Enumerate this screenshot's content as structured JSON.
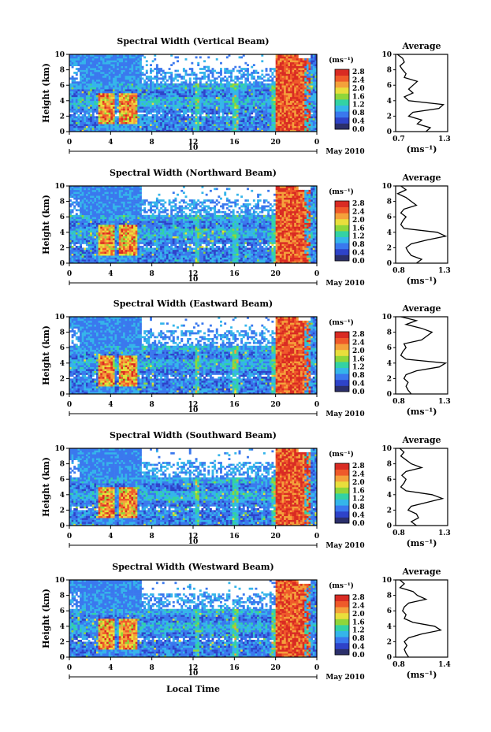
{
  "colorbar": {
    "unit": "(ms⁻¹)",
    "ticks": [
      "2.8",
      "2.4",
      "2.0",
      "1.6",
      "1.2",
      "0.8",
      "0.4",
      "0.0"
    ],
    "colors": [
      "#2b2f6b",
      "#2e43c9",
      "#3a78ee",
      "#35b5ea",
      "#33d2a4",
      "#8fd63a",
      "#e9de3c",
      "#f4a13b",
      "#ef5a2a",
      "#d92b23"
    ]
  },
  "shared": {
    "ylabel": "Height (km)",
    "yticks": [
      "0",
      "2",
      "4",
      "6",
      "8",
      "10"
    ],
    "xticks": [
      "0",
      "4",
      "8",
      "12",
      "16",
      "20",
      "0"
    ],
    "day_label": "10",
    "month_label": "May 2010",
    "avg_title": "Average",
    "avg_unit": "(ms⁻¹)",
    "xlabel_bottom": "Local Time"
  },
  "chart_data": [
    {
      "type": "heatmap",
      "title": "Spectral Width (Vertical Beam)",
      "ylabel": "Height (km)",
      "ylim": [
        0,
        10
      ],
      "xlim": [
        0,
        24
      ],
      "avg_xticks": [
        "0.7",
        "1.3"
      ],
      "avg_xlim": [
        0.7,
        1.3
      ],
      "avg_profile": [
        1.05,
        1.1,
        0.95,
        1.0,
        0.85,
        0.9,
        1.2,
        1.25,
        0.85,
        0.8,
        0.9,
        0.85,
        0.9,
        0.95,
        0.8,
        0.82,
        0.78,
        0.75,
        0.8,
        0.78,
        0.72
      ]
    },
    {
      "type": "heatmap",
      "title": "Spectral Width (Northward Beam)",
      "ylabel": "Height (km)",
      "ylim": [
        0,
        10
      ],
      "xlim": [
        0,
        24
      ],
      "avg_xticks": [
        "0.8",
        "1.3"
      ],
      "avg_xlim": [
        0.8,
        1.3
      ],
      "avg_profile": [
        1.0,
        1.05,
        0.95,
        0.92,
        0.9,
        0.95,
        1.1,
        1.28,
        1.2,
        0.88,
        0.85,
        0.87,
        0.9,
        0.85,
        0.88,
        1.0,
        0.95,
        0.9,
        0.82,
        0.9,
        0.85
      ]
    },
    {
      "type": "heatmap",
      "title": "Spectral Width (Eastward Beam)",
      "ylabel": "Height (km)",
      "ylim": [
        0,
        10
      ],
      "xlim": [
        0,
        24
      ],
      "avg_xticks": [
        "0.8",
        "1.3"
      ],
      "avg_xlim": [
        0.8,
        1.3
      ],
      "avg_profile": [
        0.95,
        0.92,
        0.9,
        0.92,
        0.88,
        0.9,
        1.0,
        1.22,
        1.28,
        0.9,
        0.85,
        0.87,
        0.9,
        0.88,
        1.05,
        1.1,
        1.15,
        1.05,
        0.9,
        1.0,
        0.85
      ]
    },
    {
      "type": "heatmap",
      "title": "Spectral Width (Southward Beam)",
      "ylabel": "Height (km)",
      "ylim": [
        0,
        10
      ],
      "xlim": [
        0,
        24
      ],
      "avg_xticks": [
        "0.8",
        "1.3"
      ],
      "avg_xlim": [
        0.8,
        1.3
      ],
      "avg_profile": [
        1.0,
        0.95,
        1.02,
        1.0,
        0.92,
        0.95,
        1.1,
        1.25,
        1.15,
        0.9,
        0.85,
        0.88,
        0.9,
        0.86,
        0.9,
        1.05,
        0.95,
        0.9,
        0.85,
        0.88,
        0.84
      ]
    },
    {
      "type": "heatmap",
      "title": "Spectral Width (Westward Beam)",
      "ylabel": "Height (km)",
      "ylim": [
        0,
        10
      ],
      "xlim": [
        0,
        24
      ],
      "avg_xticks": [
        "0.8",
        "1.4"
      ],
      "avg_xlim": [
        0.8,
        1.4
      ],
      "avg_profile": [
        0.95,
        0.92,
        0.9,
        0.93,
        0.9,
        0.95,
        1.1,
        1.32,
        1.25,
        1.0,
        0.9,
        0.92,
        0.88,
        0.9,
        0.95,
        1.15,
        1.05,
        1.0,
        0.85,
        0.9,
        0.85
      ]
    }
  ]
}
